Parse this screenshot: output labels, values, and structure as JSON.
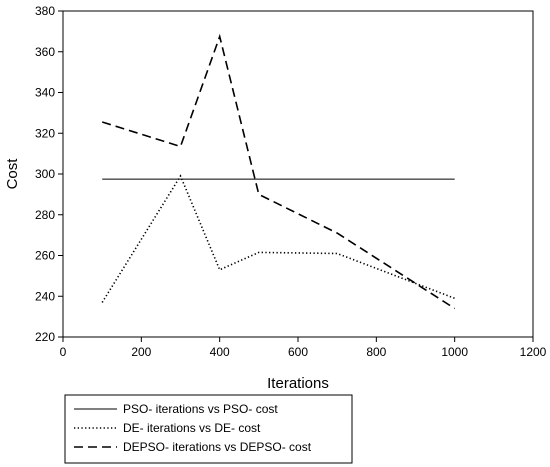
{
  "chart_data": {
    "type": "line",
    "title": "",
    "xlabel": "Iterations",
    "ylabel": "Cost",
    "xlim": [
      0,
      1200
    ],
    "ylim": [
      220,
      380
    ],
    "x_ticks": [
      0,
      200,
      400,
      600,
      800,
      1000,
      1200
    ],
    "y_ticks": [
      220,
      240,
      260,
      280,
      300,
      320,
      340,
      360,
      380
    ],
    "grid": false,
    "legend_position": "bottom-left-outside",
    "series": [
      {
        "name": "PSO- iterations vs PSO- cost",
        "style": "solid",
        "color": "#000000",
        "x": [
          100,
          1000
        ],
        "y": [
          297.5,
          297.5
        ]
      },
      {
        "name": "DE- iterations vs DE- cost",
        "style": "dotted",
        "color": "#000000",
        "x": [
          100,
          300,
          400,
          500,
          700,
          1000
        ],
        "y": [
          237,
          299,
          253,
          261.5,
          261,
          239
        ]
      },
      {
        "name": "DEPSO- iterations vs DEPSO- cost",
        "style": "dashed",
        "color": "#000000",
        "x": [
          100,
          300,
          400,
          500,
          700,
          1000
        ],
        "y": [
          325.5,
          313.5,
          367.5,
          290,
          271,
          234
        ]
      }
    ]
  }
}
